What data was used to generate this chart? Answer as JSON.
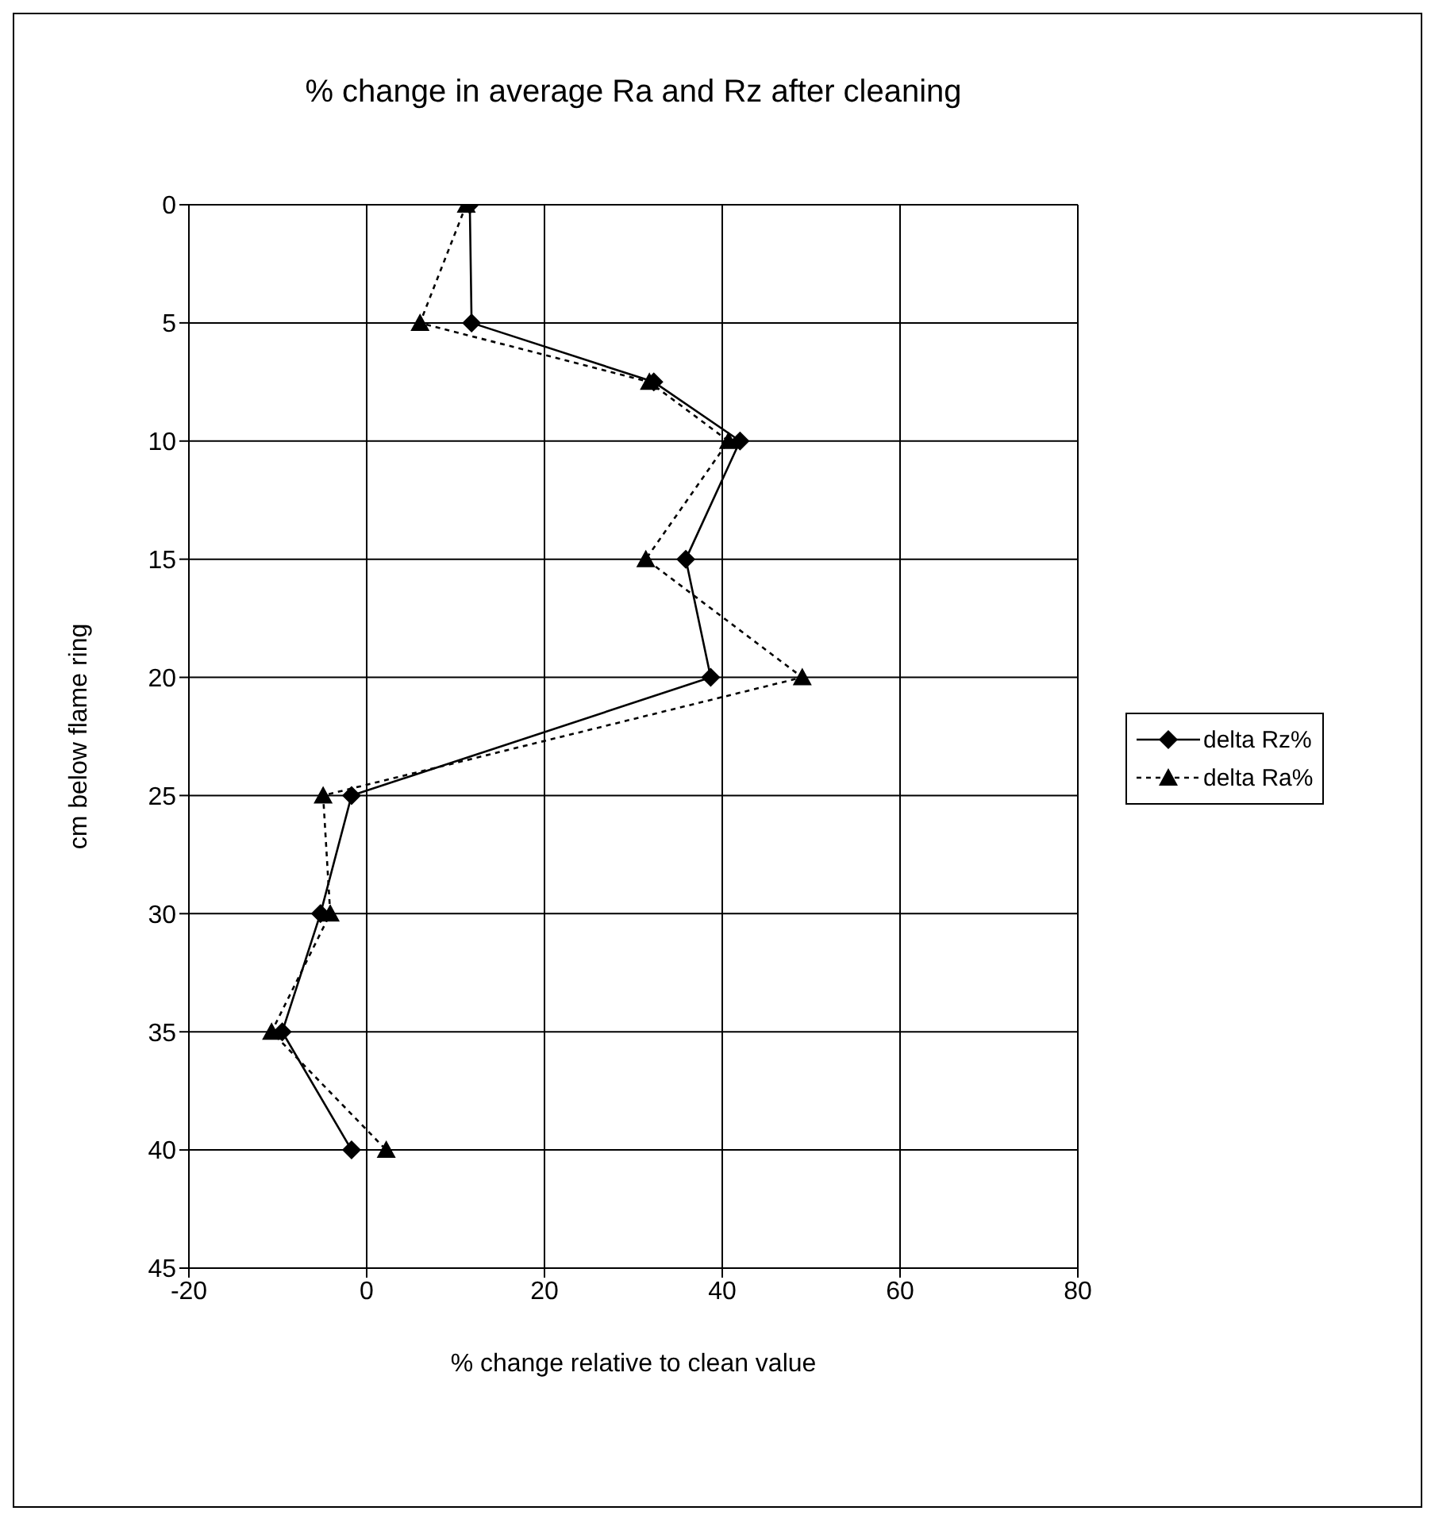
{
  "chart_data": {
    "type": "line",
    "title": "% change in average Ra and Rz after cleaning",
    "xlabel": "% change relative to clean value",
    "ylabel": "cm below flame ring",
    "series": [
      {
        "name": "delta Rz%",
        "color": "#000000",
        "marker": "diamond",
        "line_style": "solid",
        "x": [
          11.6,
          11.8,
          32.3,
          42,
          35.9,
          38.7,
          -1.7,
          -5.2,
          -9.5,
          -1.7
        ],
        "values": [
          0,
          5,
          7.5,
          10,
          15,
          20,
          25,
          30,
          35,
          40
        ]
      },
      {
        "name": "delta Ra%",
        "color": "#000000",
        "marker": "triangle",
        "line_style": "dotted",
        "x": [
          11.2,
          6,
          31.8,
          40.7,
          31.4,
          49,
          -4.9,
          -4.1,
          -10.7,
          2.2
        ],
        "values": [
          0,
          5,
          7.5,
          10,
          15,
          20,
          25,
          30,
          35,
          40
        ]
      }
    ],
    "xlim": [
      -20,
      80
    ],
    "xticks": [
      -20,
      0,
      20,
      40,
      60,
      80
    ],
    "ylim": [
      45,
      0
    ],
    "yticks": [
      0,
      5,
      10,
      15,
      20,
      25,
      30,
      35,
      40,
      45
    ],
    "grid": true,
    "legend": "right"
  }
}
